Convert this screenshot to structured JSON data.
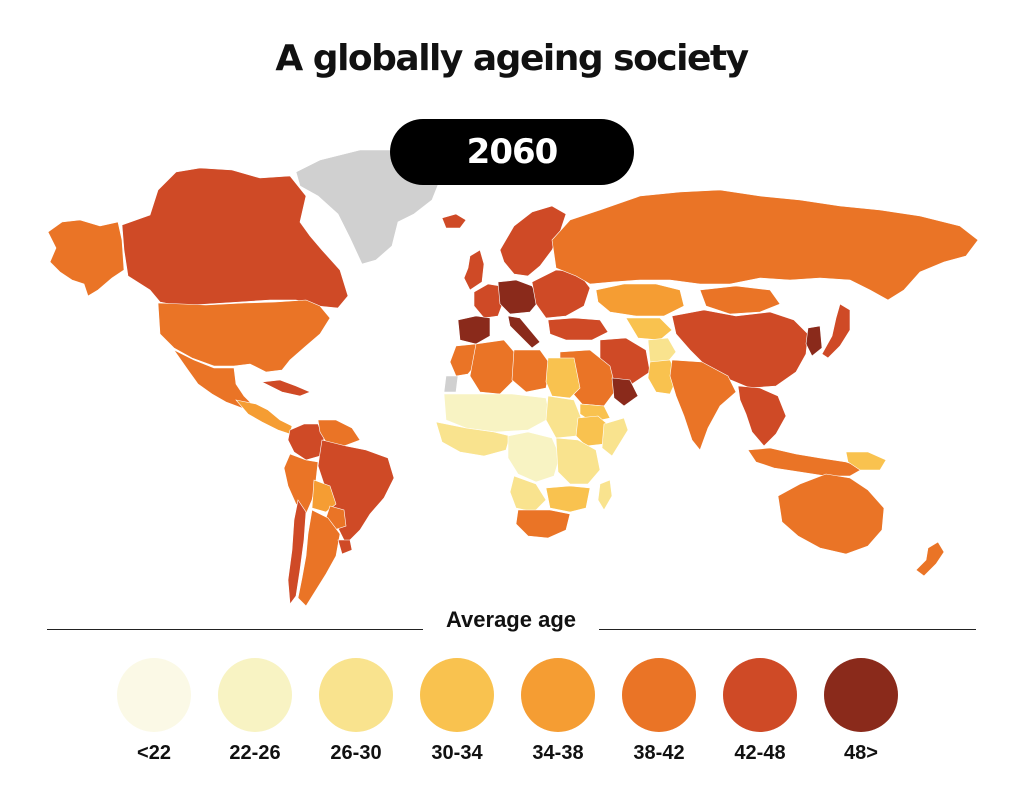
{
  "title": "A globally ageing society",
  "year": "2060",
  "legend": {
    "title": "Average age",
    "bins": [
      {
        "label": "<22",
        "color": "#fbf9e6"
      },
      {
        "label": "22-26",
        "color": "#f8f3c3"
      },
      {
        "label": "26-30",
        "color": "#f9e38e"
      },
      {
        "label": "30-34",
        "color": "#f9c24f"
      },
      {
        "label": "34-38",
        "color": "#f59d33"
      },
      {
        "label": "38-42",
        "color": "#ea7426"
      },
      {
        "label": "42-48",
        "color": "#cf4a26"
      },
      {
        "label": "48>",
        "color": "#8a2a1b"
      }
    ],
    "no_data_color": "#d0d0d0"
  },
  "regions": [
    {
      "name": "Alaska",
      "bin": 5
    },
    {
      "name": "Canada",
      "bin": 6
    },
    {
      "name": "Greenland",
      "bin": null
    },
    {
      "name": "United States",
      "bin": 5
    },
    {
      "name": "Mexico",
      "bin": 5
    },
    {
      "name": "Central America",
      "bin": 4
    },
    {
      "name": "Caribbean",
      "bin": 6
    },
    {
      "name": "Colombia",
      "bin": 6
    },
    {
      "name": "Venezuela",
      "bin": 5
    },
    {
      "name": "Peru",
      "bin": 5
    },
    {
      "name": "Brazil",
      "bin": 6
    },
    {
      "name": "Bolivia",
      "bin": 4
    },
    {
      "name": "Paraguay",
      "bin": 5
    },
    {
      "name": "Argentina",
      "bin": 5
    },
    {
      "name": "Chile",
      "bin": 6
    },
    {
      "name": "Uruguay",
      "bin": 6
    },
    {
      "name": "Iceland",
      "bin": 6
    },
    {
      "name": "Scandinavia",
      "bin": 6
    },
    {
      "name": "United Kingdom",
      "bin": 6
    },
    {
      "name": "Western Europe",
      "bin": 6
    },
    {
      "name": "Spain",
      "bin": 7
    },
    {
      "name": "Germany",
      "bin": 7
    },
    {
      "name": "Italy",
      "bin": 7
    },
    {
      "name": "Eastern Europe",
      "bin": 6
    },
    {
      "name": "Turkey",
      "bin": 6
    },
    {
      "name": "Russia",
      "bin": 5
    },
    {
      "name": "Kazakhstan",
      "bin": 4
    },
    {
      "name": "Central Asia",
      "bin": 3
    },
    {
      "name": "Mongolia",
      "bin": 5
    },
    {
      "name": "China",
      "bin": 6
    },
    {
      "name": "Korea",
      "bin": 7
    },
    {
      "name": "Japan",
      "bin": 6
    },
    {
      "name": "Iran",
      "bin": 6
    },
    {
      "name": "Saudi Arabia",
      "bin": 5
    },
    {
      "name": "Oman",
      "bin": 7
    },
    {
      "name": "Yemen",
      "bin": 3
    },
    {
      "name": "Afghanistan",
      "bin": 2
    },
    {
      "name": "Pakistan",
      "bin": 3
    },
    {
      "name": "India",
      "bin": 5
    },
    {
      "name": "Southeast Asia",
      "bin": 6
    },
    {
      "name": "Indonesia",
      "bin": 5
    },
    {
      "name": "Papua New Guinea",
      "bin": 3
    },
    {
      "name": "Australia",
      "bin": 5
    },
    {
      "name": "New Zealand",
      "bin": 5
    },
    {
      "name": "Morocco",
      "bin": 5
    },
    {
      "name": "Western Sahara",
      "bin": null
    },
    {
      "name": "Algeria",
      "bin": 5
    },
    {
      "name": "Libya",
      "bin": 5
    },
    {
      "name": "Egypt",
      "bin": 3
    },
    {
      "name": "Sahel",
      "bin": 1
    },
    {
      "name": "Sudan",
      "bin": 2
    },
    {
      "name": "Ethiopia",
      "bin": 3
    },
    {
      "name": "Somalia",
      "bin": 2
    },
    {
      "name": "West Africa",
      "bin": 2
    },
    {
      "name": "Central Africa",
      "bin": 1
    },
    {
      "name": "East Africa",
      "bin": 2
    },
    {
      "name": "Angola",
      "bin": 2
    },
    {
      "name": "Southern Africa",
      "bin": 3
    },
    {
      "name": "South Africa",
      "bin": 5
    },
    {
      "name": "Madagascar",
      "bin": 2
    }
  ]
}
